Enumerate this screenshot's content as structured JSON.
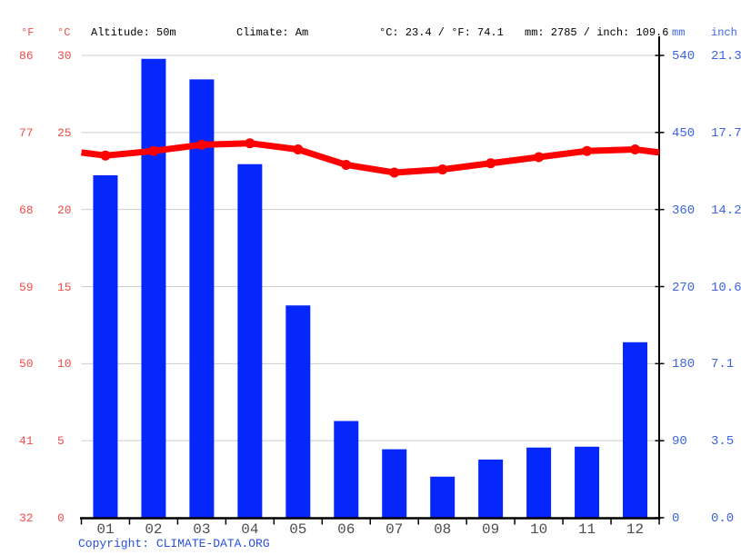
{
  "header": {
    "f_unit": "°F",
    "c_unit": "°C",
    "altitude": "Altitude: 50m",
    "climate": "Climate: Am",
    "temp_summary": "°C: 23.4 / °F: 74.1",
    "precip_summary": "mm: 2785 / inch: 109.6",
    "mm_unit": "mm",
    "inch_unit": "inch"
  },
  "axes": {
    "left_fahrenheit": [
      "86",
      "77",
      "68",
      "59",
      "50",
      "41",
      "32"
    ],
    "left_celsius": [
      "30",
      "25",
      "20",
      "15",
      "10",
      "5",
      "0"
    ],
    "right_mm": [
      "540",
      "450",
      "360",
      "270",
      "180",
      "90",
      "0"
    ],
    "right_inch": [
      "21.3",
      "17.7",
      "14.2",
      "10.6",
      "7.1",
      "3.5",
      "0.0"
    ]
  },
  "chart_data": {
    "type": "bar+line",
    "categories": [
      "01",
      "02",
      "03",
      "04",
      "05",
      "06",
      "07",
      "08",
      "09",
      "10",
      "11",
      "12"
    ],
    "series": [
      {
        "name": "precipitation",
        "unit": "mm",
        "type": "bar",
        "color": "#0527fb",
        "values": [
          400,
          536,
          512,
          413,
          248,
          113,
          80,
          48,
          68,
          82,
          83,
          205
        ]
      },
      {
        "name": "average-temperature",
        "unit": "°C",
        "type": "line",
        "color": "#ff0000",
        "values": [
          23.5,
          23.8,
          24.2,
          24.3,
          23.9,
          22.9,
          22.4,
          22.6,
          23.0,
          23.4,
          23.8,
          23.9
        ]
      }
    ],
    "temp_axis_c": {
      "min": 0,
      "max": 30,
      "ticks": [
        30,
        25,
        20,
        15,
        10,
        5,
        0
      ]
    },
    "precip_axis_mm": {
      "min": 0,
      "max": 540,
      "ticks": [
        540,
        450,
        360,
        270,
        180,
        90,
        0
      ]
    },
    "grid": true,
    "legend": "none",
    "annotations": {
      "altitude_m": 50,
      "climate_class": "Am",
      "mean_temp_c": 23.4,
      "mean_temp_f": 74.1,
      "total_precip_mm": 2785,
      "total_precip_inch": 109.6
    }
  },
  "footer": {
    "copyright_label": "Copyright: ",
    "site": "CLIMATE-DATA.ORG"
  },
  "colors": {
    "bar_blue": "#0527fb",
    "line_red": "#ff0000",
    "red_label": "#f24b4b",
    "blue_label": "#3d64e0",
    "copyright_blue": "#2750d8",
    "month_label": "#4d4d4d",
    "grid": "#cccccc",
    "axis": "#000000",
    "header_text": "#000000"
  }
}
